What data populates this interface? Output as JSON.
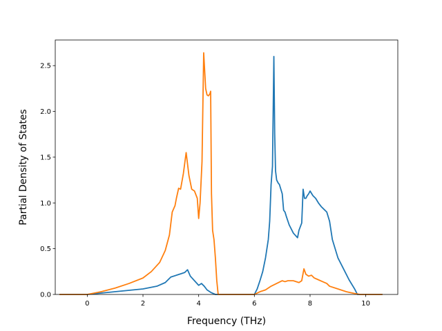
{
  "chart_data": {
    "type": "line",
    "xlabel": "Frequency (THz)",
    "ylabel": "Partial Density of States",
    "xlim": [
      -1.15,
      11.15
    ],
    "ylim": [
      0,
      2.78
    ],
    "xticks": [
      0,
      2,
      4,
      6,
      8,
      10
    ],
    "yticks": [
      0.0,
      0.5,
      1.0,
      1.5,
      2.0,
      2.5
    ],
    "xtick_labels": [
      "0",
      "2",
      "4",
      "6",
      "8",
      "10"
    ],
    "ytick_labels": [
      "0.0",
      "0.5",
      "1.0",
      "1.5",
      "2.0",
      "2.5"
    ],
    "grid": false,
    "series": [
      {
        "color": "#1f77b4",
        "x": [
          -1.0,
          0.0,
          0.5,
          1.0,
          1.5,
          2.0,
          2.5,
          2.8,
          3.0,
          3.2,
          3.4,
          3.5,
          3.6,
          3.7,
          3.85,
          4.0,
          4.1,
          4.2,
          4.3,
          4.45,
          4.6,
          4.7,
          5.0,
          5.5,
          6.0,
          6.1,
          6.2,
          6.3,
          6.4,
          6.5,
          6.55,
          6.6,
          6.65,
          6.7,
          6.73,
          6.76,
          6.8,
          6.85,
          6.9,
          7.0,
          7.05,
          7.1,
          7.15,
          7.25,
          7.4,
          7.55,
          7.6,
          7.7,
          7.75,
          7.8,
          7.85,
          7.9,
          7.95,
          8.0,
          8.1,
          8.2,
          8.3,
          8.4,
          8.5,
          8.6,
          8.7,
          8.8,
          9.0,
          9.2,
          9.4,
          9.6,
          9.7,
          10.0,
          10.6
        ],
        "y": [
          0.0,
          0.0,
          0.015,
          0.03,
          0.045,
          0.06,
          0.09,
          0.13,
          0.19,
          0.21,
          0.23,
          0.24,
          0.27,
          0.2,
          0.15,
          0.1,
          0.12,
          0.09,
          0.05,
          0.02,
          0.0,
          0.0,
          0.0,
          0.0,
          0.0,
          0.06,
          0.15,
          0.25,
          0.4,
          0.6,
          0.8,
          1.2,
          1.4,
          2.6,
          1.75,
          1.35,
          1.25,
          1.22,
          1.2,
          1.1,
          0.92,
          0.9,
          0.85,
          0.76,
          0.67,
          0.62,
          0.7,
          0.78,
          1.15,
          1.05,
          1.05,
          1.08,
          1.1,
          1.13,
          1.08,
          1.05,
          1.0,
          0.96,
          0.93,
          0.9,
          0.8,
          0.6,
          0.4,
          0.28,
          0.16,
          0.06,
          0.0,
          0.0,
          0.0
        ]
      },
      {
        "color": "#ff7f0e",
        "x": [
          -1.0,
          0.0,
          0.5,
          1.0,
          1.5,
          2.0,
          2.3,
          2.6,
          2.8,
          2.95,
          3.05,
          3.15,
          3.2,
          3.28,
          3.35,
          3.45,
          3.55,
          3.65,
          3.75,
          3.85,
          3.95,
          4.0,
          4.05,
          4.12,
          4.18,
          4.25,
          4.3,
          4.35,
          4.4,
          4.43,
          4.46,
          4.5,
          4.55,
          4.6,
          4.65,
          4.7,
          4.8,
          5.0,
          5.5,
          6.0,
          6.2,
          6.4,
          6.6,
          6.8,
          7.0,
          7.1,
          7.2,
          7.4,
          7.6,
          7.7,
          7.78,
          7.85,
          7.95,
          8.05,
          8.15,
          8.3,
          8.45,
          8.6,
          8.7,
          9.0,
          9.3,
          9.6,
          9.8,
          10.6
        ],
        "y": [
          0.0,
          0.0,
          0.03,
          0.07,
          0.12,
          0.18,
          0.25,
          0.35,
          0.48,
          0.65,
          0.9,
          0.97,
          1.05,
          1.16,
          1.15,
          1.32,
          1.55,
          1.3,
          1.15,
          1.13,
          1.05,
          0.83,
          1.0,
          1.45,
          2.64,
          2.25,
          2.18,
          2.17,
          2.19,
          2.22,
          1.1,
          0.7,
          0.6,
          0.4,
          0.15,
          0.0,
          0.0,
          0.0,
          0.0,
          0.0,
          0.03,
          0.05,
          0.09,
          0.12,
          0.15,
          0.14,
          0.15,
          0.15,
          0.13,
          0.15,
          0.28,
          0.22,
          0.2,
          0.21,
          0.18,
          0.16,
          0.14,
          0.12,
          0.09,
          0.06,
          0.03,
          0.01,
          0.0,
          0.0
        ]
      }
    ]
  }
}
